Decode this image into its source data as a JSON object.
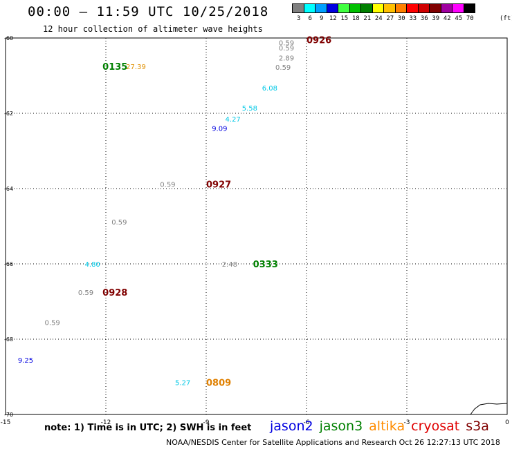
{
  "header": {
    "title": "00:00 – 11:59 UTC 10/25/2018",
    "subtitle": "12 hour collection of altimeter wave heights"
  },
  "legend": {
    "unit": "(ft)",
    "items": [
      {
        "label": "3",
        "color": "#808080"
      },
      {
        "label": "6",
        "color": "#00ffff"
      },
      {
        "label": "9",
        "color": "#00a0ff"
      },
      {
        "label": "12",
        "color": "#0000e0"
      },
      {
        "label": "15",
        "color": "#40ff40"
      },
      {
        "label": "18",
        "color": "#00c000"
      },
      {
        "label": "21",
        "color": "#008000"
      },
      {
        "label": "24",
        "color": "#ffff00"
      },
      {
        "label": "27",
        "color": "#ffc000"
      },
      {
        "label": "30",
        "color": "#ff8000"
      },
      {
        "label": "33",
        "color": "#ff0000"
      },
      {
        "label": "36",
        "color": "#d00000"
      },
      {
        "label": "39",
        "color": "#800000"
      },
      {
        "label": "42",
        "color": "#a000a0"
      },
      {
        "label": "45",
        "color": "#ff00ff"
      },
      {
        "label": "70",
        "color": "#000000"
      }
    ]
  },
  "map": {
    "lon_range": [
      -15,
      0
    ],
    "lat_range": [
      -70,
      -60
    ],
    "lon_ticks": [
      "-15",
      "-12",
      "-9",
      "-6",
      "-3",
      "0"
    ],
    "lat_ticks": [
      "-60",
      "-62",
      "-64",
      "-66",
      "-68",
      "-70"
    ],
    "lat_tick_values": [
      -60,
      -62,
      -64,
      -66,
      -68,
      -70
    ],
    "lon_tick_values": [
      -15,
      -12,
      -9,
      -6,
      -3,
      0
    ],
    "grid": true
  },
  "observations": [
    {
      "lon": -6.6,
      "lat": -60.12,
      "text": "0.59",
      "color": "#808080"
    },
    {
      "lon": -6.6,
      "lat": -60.26,
      "text": "0.59",
      "color": "#808080"
    },
    {
      "lon": -6.6,
      "lat": -60.52,
      "text": "2.89",
      "color": "#808080"
    },
    {
      "lon": -6.7,
      "lat": -60.77,
      "text": "0.59",
      "color": "#808080"
    },
    {
      "lon": -7.1,
      "lat": -61.32,
      "text": "6.08",
      "color": "#00c8e6"
    },
    {
      "lon": -7.7,
      "lat": -61.85,
      "text": "5.58",
      "color": "#00c8e6"
    },
    {
      "lon": -8.2,
      "lat": -62.15,
      "text": "4.27",
      "color": "#00c8e6"
    },
    {
      "lon": -8.6,
      "lat": -62.39,
      "text": "9.09",
      "color": "#0000e0"
    },
    {
      "lon": -10.15,
      "lat": -63.88,
      "text": "0.59",
      "color": "#808080"
    },
    {
      "lon": -11.6,
      "lat": -64.88,
      "text": "0.59",
      "color": "#808080"
    },
    {
      "lon": -12.4,
      "lat": -66.0,
      "text": "4.80",
      "color": "#00c8e6"
    },
    {
      "lon": -12.6,
      "lat": -66.75,
      "text": "0.59",
      "color": "#808080"
    },
    {
      "lon": -13.6,
      "lat": -67.55,
      "text": "0.59",
      "color": "#808080"
    },
    {
      "lon": -14.4,
      "lat": -68.55,
      "text": "9.25",
      "color": "#0000e0"
    },
    {
      "lon": -8.3,
      "lat": -66.0,
      "text": "2.48",
      "color": "#808080"
    },
    {
      "lon": -10.5,
      "lat": -66.06,
      "text": "",
      "color": "#808080"
    },
    {
      "lon": -9.7,
      "lat": -69.15,
      "text": "5.27",
      "color": "#00c8e6"
    },
    {
      "lon": -11.1,
      "lat": -60.75,
      "text": "27.39",
      "color": "#e09000"
    }
  ],
  "pass_times": [
    {
      "lon": -6.0,
      "lat": -60.05,
      "text": "0926",
      "color": "#800000"
    },
    {
      "lon": -12.1,
      "lat": -60.75,
      "text": "0135",
      "color": "#008000"
    },
    {
      "lon": -9.0,
      "lat": -63.88,
      "text": "0927",
      "color": "#800000"
    },
    {
      "lon": -12.1,
      "lat": -66.75,
      "text": "0928",
      "color": "#800000"
    },
    {
      "lon": -7.6,
      "lat": -66.0,
      "text": "0333",
      "color": "#008000"
    },
    {
      "lon": -9.0,
      "lat": -69.15,
      "text": "0809",
      "color": "#e08000"
    }
  ],
  "footer": {
    "note": "note: 1) Time is in UTC; 2) SWH is in feet",
    "credit": "NOAA/NESDIS Center for Satellite Applications and Research    Oct 26 12:27:13 UTC 2018",
    "satellites": [
      {
        "name": "jason2",
        "color": "#0000e0"
      },
      {
        "name": "jason3",
        "color": "#008000"
      },
      {
        "name": "altika",
        "color": "#ff8c00"
      },
      {
        "name": "cryosat",
        "color": "#e00000"
      },
      {
        "name": "s3a",
        "color": "#800000"
      }
    ]
  }
}
